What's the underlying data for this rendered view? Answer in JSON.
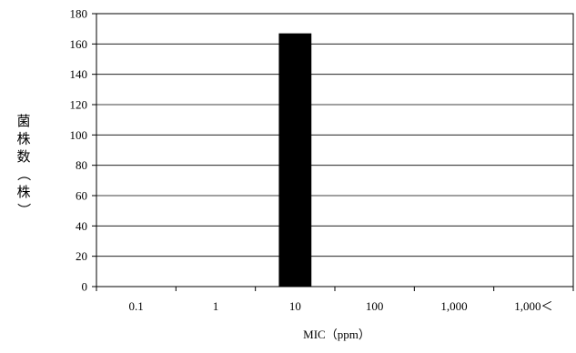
{
  "chart_data": {
    "type": "bar",
    "title": "",
    "xlabel": "MIC（ppm）",
    "ylabel": "菌株数（株）",
    "categories": [
      "0.1",
      "1",
      "10",
      "100",
      "1,000",
      "1,000＜"
    ],
    "values": [
      0,
      0,
      167,
      0,
      0,
      0
    ],
    "ylim": [
      0,
      180
    ],
    "yticks": [
      0,
      20,
      40,
      60,
      80,
      100,
      120,
      140,
      160,
      180
    ],
    "grid": "horizontal",
    "bar_color": "#000000"
  }
}
